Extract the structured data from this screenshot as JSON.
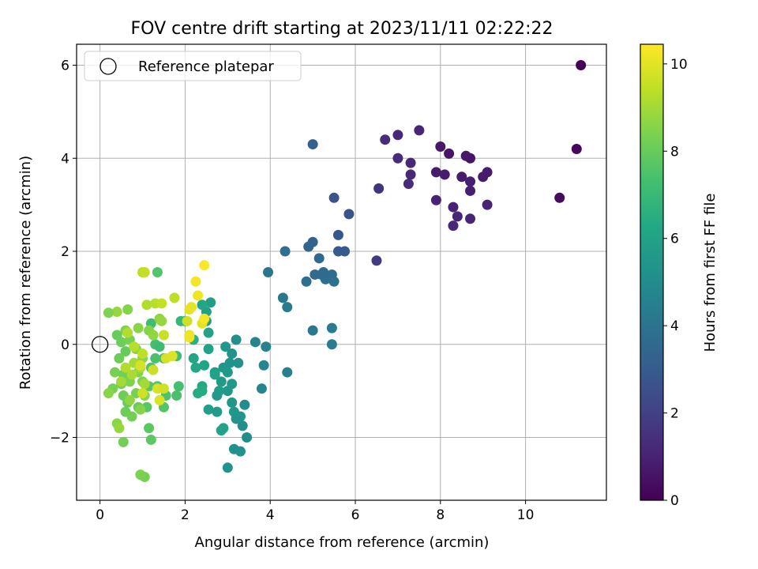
{
  "chart_data": {
    "type": "scatter",
    "title": "FOV centre drift starting at 2023/11/11 02:22:22",
    "xlabel": "Angular distance from reference (arcmin)",
    "ylabel": "Rotation from reference (arcmin)",
    "xlim": [
      -0.55,
      11.9
    ],
    "ylim": [
      -3.35,
      6.45
    ],
    "x_ticks": [
      0,
      2,
      4,
      6,
      8,
      10
    ],
    "y_ticks": [
      -2,
      0,
      2,
      4,
      6
    ],
    "x_tick_labels": [
      "0",
      "2",
      "4",
      "6",
      "8",
      "10"
    ],
    "y_tick_labels": [
      "−2",
      "0",
      "2",
      "4",
      "6"
    ],
    "grid": true,
    "legend": {
      "placement": "top-left",
      "entries": [
        "Reference platepar"
      ]
    },
    "reference_point": {
      "x": 0,
      "y": 0,
      "marker": "open-circle"
    },
    "colormap": "viridis",
    "colorbar": {
      "label": "Hours from first FF file",
      "range": [
        0,
        10.45
      ],
      "ticks": [
        0,
        2,
        4,
        6,
        8,
        10
      ],
      "tick_labels": [
        "0",
        "2",
        "4",
        "6",
        "8",
        "10"
      ]
    },
    "points": [
      {
        "x": 11.3,
        "y": 6.0,
        "h": 0.1
      },
      {
        "x": 11.2,
        "y": 4.2,
        "h": 0.2
      },
      {
        "x": 10.8,
        "y": 3.15,
        "h": 0.3
      },
      {
        "x": 9.1,
        "y": 3.7,
        "h": 0.8
      },
      {
        "x": 9.0,
        "y": 3.6,
        "h": 0.8
      },
      {
        "x": 9.1,
        "y": 3.0,
        "h": 1.0
      },
      {
        "x": 8.7,
        "y": 4.0,
        "h": 0.6
      },
      {
        "x": 8.6,
        "y": 4.05,
        "h": 0.7
      },
      {
        "x": 8.5,
        "y": 3.6,
        "h": 0.8
      },
      {
        "x": 8.7,
        "y": 3.5,
        "h": 0.9
      },
      {
        "x": 8.7,
        "y": 3.3,
        "h": 0.9
      },
      {
        "x": 8.7,
        "y": 2.7,
        "h": 1.1
      },
      {
        "x": 8.4,
        "y": 2.75,
        "h": 1.1
      },
      {
        "x": 8.3,
        "y": 2.95,
        "h": 1.0
      },
      {
        "x": 8.3,
        "y": 2.55,
        "h": 1.2
      },
      {
        "x": 8.2,
        "y": 4.1,
        "h": 0.6
      },
      {
        "x": 8.0,
        "y": 4.25,
        "h": 0.7
      },
      {
        "x": 8.1,
        "y": 3.65,
        "h": 0.8
      },
      {
        "x": 7.9,
        "y": 3.7,
        "h": 0.8
      },
      {
        "x": 7.9,
        "y": 3.1,
        "h": 1.0
      },
      {
        "x": 7.5,
        "y": 4.6,
        "h": 1.1
      },
      {
        "x": 7.3,
        "y": 3.9,
        "h": 1.2
      },
      {
        "x": 7.3,
        "y": 3.65,
        "h": 1.2
      },
      {
        "x": 7.25,
        "y": 3.45,
        "h": 1.3
      },
      {
        "x": 7.0,
        "y": 4.5,
        "h": 1.2
      },
      {
        "x": 7.0,
        "y": 4.0,
        "h": 1.3
      },
      {
        "x": 6.7,
        "y": 4.4,
        "h": 1.3
      },
      {
        "x": 6.55,
        "y": 3.35,
        "h": 1.5
      },
      {
        "x": 6.5,
        "y": 1.8,
        "h": 1.8
      },
      {
        "x": 5.85,
        "y": 2.8,
        "h": 2.6
      },
      {
        "x": 5.5,
        "y": 3.15,
        "h": 2.7
      },
      {
        "x": 5.6,
        "y": 2.35,
        "h": 2.8
      },
      {
        "x": 5.6,
        "y": 2.0,
        "h": 3.0
      },
      {
        "x": 5.75,
        "y": 2.0,
        "h": 3.0
      },
      {
        "x": 5.0,
        "y": 4.3,
        "h": 3.2
      },
      {
        "x": 5.0,
        "y": 2.2,
        "h": 3.3
      },
      {
        "x": 4.9,
        "y": 2.1,
        "h": 3.4
      },
      {
        "x": 5.15,
        "y": 1.85,
        "h": 3.5
      },
      {
        "x": 5.05,
        "y": 1.5,
        "h": 3.6
      },
      {
        "x": 5.2,
        "y": 1.5,
        "h": 3.6
      },
      {
        "x": 5.3,
        "y": 1.4,
        "h": 3.7
      },
      {
        "x": 5.25,
        "y": 1.55,
        "h": 3.6
      },
      {
        "x": 5.45,
        "y": 1.5,
        "h": 3.7
      },
      {
        "x": 5.5,
        "y": 1.35,
        "h": 3.8
      },
      {
        "x": 4.85,
        "y": 1.35,
        "h": 3.8
      },
      {
        "x": 4.35,
        "y": 2.0,
        "h": 3.9
      },
      {
        "x": 3.95,
        "y": 1.55,
        "h": 4.1
      },
      {
        "x": 4.3,
        "y": 1.0,
        "h": 4.2
      },
      {
        "x": 4.4,
        "y": 0.8,
        "h": 4.3
      },
      {
        "x": 5.0,
        "y": 0.3,
        "h": 4.2
      },
      {
        "x": 5.45,
        "y": 0.35,
        "h": 4.3
      },
      {
        "x": 5.45,
        "y": 0.0,
        "h": 4.4
      },
      {
        "x": 4.4,
        "y": -0.6,
        "h": 4.5
      },
      {
        "x": 3.65,
        "y": 0.05,
        "h": 4.7
      },
      {
        "x": 3.9,
        "y": -0.05,
        "h": 4.6
      },
      {
        "x": 3.85,
        "y": -0.45,
        "h": 4.8
      },
      {
        "x": 3.8,
        "y": -0.95,
        "h": 4.8
      },
      {
        "x": 3.4,
        "y": -1.3,
        "h": 5.0
      },
      {
        "x": 3.35,
        "y": -1.75,
        "h": 5.0
      },
      {
        "x": 3.45,
        "y": -2.0,
        "h": 5.1
      },
      {
        "x": 3.15,
        "y": -2.25,
        "h": 5.2
      },
      {
        "x": 3.3,
        "y": -2.3,
        "h": 5.3
      },
      {
        "x": 3.0,
        "y": -2.65,
        "h": 5.3
      },
      {
        "x": 3.2,
        "y": 0.1,
        "h": 5.2
      },
      {
        "x": 3.1,
        "y": -0.2,
        "h": 5.3
      },
      {
        "x": 3.05,
        "y": -0.4,
        "h": 5.4
      },
      {
        "x": 3.25,
        "y": -0.4,
        "h": 5.3
      },
      {
        "x": 2.95,
        "y": -0.05,
        "h": 5.5
      },
      {
        "x": 2.9,
        "y": -0.5,
        "h": 5.5
      },
      {
        "x": 3.0,
        "y": -0.6,
        "h": 5.6
      },
      {
        "x": 3.1,
        "y": -0.85,
        "h": 5.6
      },
      {
        "x": 2.85,
        "y": -0.8,
        "h": 5.7
      },
      {
        "x": 2.7,
        "y": -0.6,
        "h": 5.7
      },
      {
        "x": 2.6,
        "y": 0.9,
        "h": 5.8
      },
      {
        "x": 2.5,
        "y": 0.7,
        "h": 5.9
      },
      {
        "x": 2.5,
        "y": 0.5,
        "h": 5.9
      },
      {
        "x": 2.55,
        "y": 0.25,
        "h": 6.0
      },
      {
        "x": 2.55,
        "y": -0.1,
        "h": 6.0
      },
      {
        "x": 2.45,
        "y": -0.45,
        "h": 6.1
      },
      {
        "x": 2.25,
        "y": -0.5,
        "h": 6.2
      },
      {
        "x": 2.2,
        "y": -0.3,
        "h": 6.2
      },
      {
        "x": 2.8,
        "y": -1.0,
        "h": 5.8
      },
      {
        "x": 2.75,
        "y": -1.1,
        "h": 5.7
      },
      {
        "x": 3.0,
        "y": -1.0,
        "h": 5.6
      },
      {
        "x": 3.1,
        "y": -1.25,
        "h": 5.5
      },
      {
        "x": 3.15,
        "y": -1.45,
        "h": 5.5
      },
      {
        "x": 3.3,
        "y": -1.55,
        "h": 5.4
      },
      {
        "x": 2.55,
        "y": -1.4,
        "h": 5.8
      },
      {
        "x": 2.75,
        "y": -1.45,
        "h": 5.7
      },
      {
        "x": 2.9,
        "y": -1.8,
        "h": 6.0
      },
      {
        "x": 2.85,
        "y": -1.85,
        "h": 6.0
      },
      {
        "x": 3.2,
        "y": -1.6,
        "h": 5.4
      },
      {
        "x": 2.7,
        "y": -0.65,
        "h": 6.0
      },
      {
        "x": 2.4,
        "y": -0.9,
        "h": 6.3
      },
      {
        "x": 2.4,
        "y": -1.0,
        "h": 6.4
      },
      {
        "x": 2.3,
        "y": -1.05,
        "h": 6.4
      },
      {
        "x": 2.4,
        "y": 0.85,
        "h": 6.2
      },
      {
        "x": 2.0,
        "y": 0.5,
        "h": 6.5
      },
      {
        "x": 2.2,
        "y": 0.1,
        "h": 6.6
      },
      {
        "x": 1.35,
        "y": 1.55,
        "h": 7.6
      },
      {
        "x": 1.2,
        "y": 0.45,
        "h": 7.2
      },
      {
        "x": 1.3,
        "y": 0.0,
        "h": 7.3
      },
      {
        "x": 1.4,
        "y": -0.05,
        "h": 7.1
      },
      {
        "x": 1.5,
        "y": -0.3,
        "h": 7.2
      },
      {
        "x": 1.3,
        "y": -0.3,
        "h": 7.4
      },
      {
        "x": 1.2,
        "y": -0.5,
        "h": 7.5
      },
      {
        "x": 1.35,
        "y": -0.9,
        "h": 7.6
      },
      {
        "x": 1.55,
        "y": -1.1,
        "h": 7.5
      },
      {
        "x": 1.5,
        "y": -1.35,
        "h": 7.6
      },
      {
        "x": 1.85,
        "y": -0.9,
        "h": 7.3
      },
      {
        "x": 1.8,
        "y": -1.1,
        "h": 7.4
      },
      {
        "x": 1.8,
        "y": -0.25,
        "h": 7.2
      },
      {
        "x": 1.9,
        "y": 0.5,
        "h": 6.9
      },
      {
        "x": 1.15,
        "y": -0.9,
        "h": 7.7
      },
      {
        "x": 1.1,
        "y": -1.35,
        "h": 7.7
      },
      {
        "x": 1.15,
        "y": -1.8,
        "h": 7.8
      },
      {
        "x": 1.2,
        "y": -2.05,
        "h": 7.8
      },
      {
        "x": 0.95,
        "y": -2.8,
        "h": 8.4
      },
      {
        "x": 1.05,
        "y": -2.85,
        "h": 8.3
      },
      {
        "x": 0.55,
        "y": -2.1,
        "h": 8.2
      },
      {
        "x": 0.4,
        "y": -1.7,
        "h": 8.6
      },
      {
        "x": 0.45,
        "y": -1.8,
        "h": 8.8
      },
      {
        "x": 0.4,
        "y": 0.7,
        "h": 8.8
      },
      {
        "x": 0.2,
        "y": 0.68,
        "h": 8.4
      },
      {
        "x": 0.65,
        "y": 0.75,
        "h": 8.5
      },
      {
        "x": 0.4,
        "y": 0.2,
        "h": 8.0
      },
      {
        "x": 0.5,
        "y": 0.05,
        "h": 8.1
      },
      {
        "x": 0.6,
        "y": -0.15,
        "h": 8.0
      },
      {
        "x": 0.45,
        "y": -0.3,
        "h": 8.1
      },
      {
        "x": 0.35,
        "y": -0.6,
        "h": 8.3
      },
      {
        "x": 0.55,
        "y": -0.65,
        "h": 8.2
      },
      {
        "x": 0.7,
        "y": -0.8,
        "h": 8.4
      },
      {
        "x": 0.5,
        "y": -0.85,
        "h": 8.2
      },
      {
        "x": 0.3,
        "y": -0.95,
        "h": 8.3
      },
      {
        "x": 0.2,
        "y": -1.05,
        "h": 8.6
      },
      {
        "x": 0.55,
        "y": -1.1,
        "h": 8.1
      },
      {
        "x": 0.65,
        "y": -1.25,
        "h": 8.0
      },
      {
        "x": 0.6,
        "y": -1.45,
        "h": 8.1
      },
      {
        "x": 0.75,
        "y": -1.55,
        "h": 8.2
      },
      {
        "x": 0.9,
        "y": -1.35,
        "h": 8.0
      },
      {
        "x": 0.85,
        "y": -1.05,
        "h": 8.3
      },
      {
        "x": 1.0,
        "y": -0.8,
        "h": 8.4
      },
      {
        "x": 0.9,
        "y": -0.6,
        "h": 8.5
      },
      {
        "x": 1.0,
        "y": -0.3,
        "h": 8.6
      },
      {
        "x": 0.85,
        "y": -0.1,
        "h": 8.5
      },
      {
        "x": 0.7,
        "y": 0.1,
        "h": 8.3
      },
      {
        "x": 0.6,
        "y": 0.3,
        "h": 8.4
      },
      {
        "x": 0.9,
        "y": 0.35,
        "h": 8.6
      },
      {
        "x": 1.15,
        "y": 0.3,
        "h": 8.5
      },
      {
        "x": 1.25,
        "y": 0.2,
        "h": 8.7
      },
      {
        "x": 1.4,
        "y": 0.55,
        "h": 8.7
      },
      {
        "x": 1.45,
        "y": 0.5,
        "h": 8.8
      },
      {
        "x": 1.05,
        "y": -1.1,
        "h": 8.6
      },
      {
        "x": 0.95,
        "y": -1.4,
        "h": 8.5
      },
      {
        "x": 0.7,
        "y": -1.2,
        "h": 8.7
      },
      {
        "x": 0.8,
        "y": -0.4,
        "h": 9.0
      },
      {
        "x": 0.95,
        "y": -0.5,
        "h": 9.1
      },
      {
        "x": 1.05,
        "y": -0.85,
        "h": 9.0
      },
      {
        "x": 0.75,
        "y": -0.65,
        "h": 9.1
      },
      {
        "x": 0.6,
        "y": -0.5,
        "h": 9.2
      },
      {
        "x": 0.5,
        "y": -0.8,
        "h": 9.0
      },
      {
        "x": 0.65,
        "y": 0.25,
        "h": 9.2
      },
      {
        "x": 0.8,
        "y": -0.05,
        "h": 9.3
      },
      {
        "x": 1.0,
        "y": -0.2,
        "h": 9.4
      },
      {
        "x": 1.1,
        "y": 0.85,
        "h": 9.2
      },
      {
        "x": 1.3,
        "y": 0.88,
        "h": 9.3
      },
      {
        "x": 1.45,
        "y": 0.88,
        "h": 9.5
      },
      {
        "x": 1.5,
        "y": 0.2,
        "h": 9.6
      },
      {
        "x": 1.0,
        "y": 1.55,
        "h": 9.3
      },
      {
        "x": 1.05,
        "y": 1.55,
        "h": 9.5
      },
      {
        "x": 1.75,
        "y": 1.0,
        "h": 9.4
      },
      {
        "x": 1.25,
        "y": -0.55,
        "h": 9.6
      },
      {
        "x": 1.55,
        "y": -0.3,
        "h": 9.8
      },
      {
        "x": 1.7,
        "y": -0.25,
        "h": 9.9
      },
      {
        "x": 1.35,
        "y": -0.95,
        "h": 9.8
      },
      {
        "x": 1.5,
        "y": -0.95,
        "h": 9.7
      },
      {
        "x": 1.4,
        "y": -1.2,
        "h": 9.9
      },
      {
        "x": 1.0,
        "y": -1.05,
        "h": 9.7
      },
      {
        "x": 0.95,
        "y": -0.45,
        "h": 9.8
      },
      {
        "x": 2.05,
        "y": 0.5,
        "h": 9.7
      },
      {
        "x": 2.1,
        "y": 0.75,
        "h": 10.0
      },
      {
        "x": 2.15,
        "y": 0.8,
        "h": 10.1
      },
      {
        "x": 2.3,
        "y": 1.05,
        "h": 10.2
      },
      {
        "x": 2.25,
        "y": 1.35,
        "h": 10.3
      },
      {
        "x": 2.45,
        "y": 1.7,
        "h": 10.4
      },
      {
        "x": 2.4,
        "y": 0.45,
        "h": 10.0
      },
      {
        "x": 2.1,
        "y": 0.2,
        "h": 10.1
      },
      {
        "x": 2.1,
        "y": 0.15,
        "h": 10.2
      },
      {
        "x": 2.45,
        "y": 0.55,
        "h": 10.3
      }
    ]
  }
}
